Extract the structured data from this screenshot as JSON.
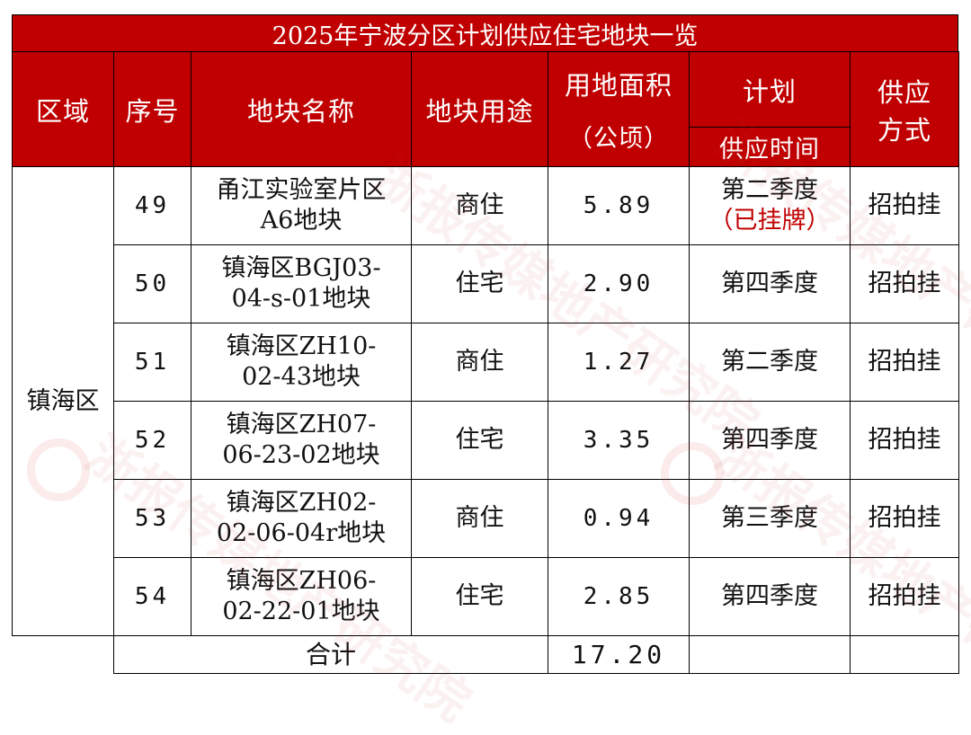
{
  "title": "2025年宁波分区计划供应住宅地块一览",
  "headers": {
    "region": "区域",
    "index": "序号",
    "parcel_name": "地块名称",
    "usage": "地块用途",
    "area_line1": "用地面积",
    "area_line2": "（公顷）",
    "plan": "计划",
    "supply_time": "供应时间",
    "supply_method_line1": "供应",
    "supply_method_line2": "方式"
  },
  "region_name": "镇海区",
  "rows": [
    {
      "index": "49",
      "name_line1": "甬江实验室片区",
      "name_line2": "A6地块",
      "usage": "商住",
      "area": "5.89",
      "time": "第二季度",
      "time_note": "（已挂牌）",
      "method": "招拍挂"
    },
    {
      "index": "50",
      "name_line1": "镇海区BGJ03-",
      "name_line2": "04-s-01地块",
      "usage": "住宅",
      "area": "2.90",
      "time": "第四季度",
      "time_note": "",
      "method": "招拍挂"
    },
    {
      "index": "51",
      "name_line1": "镇海区ZH10-",
      "name_line2": "02-43地块",
      "usage": "商住",
      "area": "1.27",
      "time": "第二季度",
      "time_note": "",
      "method": "招拍挂"
    },
    {
      "index": "52",
      "name_line1": "镇海区ZH07-",
      "name_line2": "06-23-02地块",
      "usage": "住宅",
      "area": "3.35",
      "time": "第四季度",
      "time_note": "",
      "method": "招拍挂"
    },
    {
      "index": "53",
      "name_line1": "镇海区ZH02-",
      "name_line2": "02-06-04r地块",
      "usage": "商住",
      "area": "0.94",
      "time": "第三季度",
      "time_note": "",
      "method": "招拍挂"
    },
    {
      "index": "54",
      "name_line1": "镇海区ZH06-",
      "name_line2": "02-22-01地块",
      "usage": "住宅",
      "area": "2.85",
      "time": "第四季度",
      "time_note": "",
      "method": "招拍挂"
    }
  ],
  "total": {
    "label": "合计",
    "area": "17.20"
  },
  "colors": {
    "header_bg": "#c00000",
    "header_text": "#ffffff",
    "highlight_text": "#c00000"
  },
  "watermark": "浙报传媒地产研究院"
}
